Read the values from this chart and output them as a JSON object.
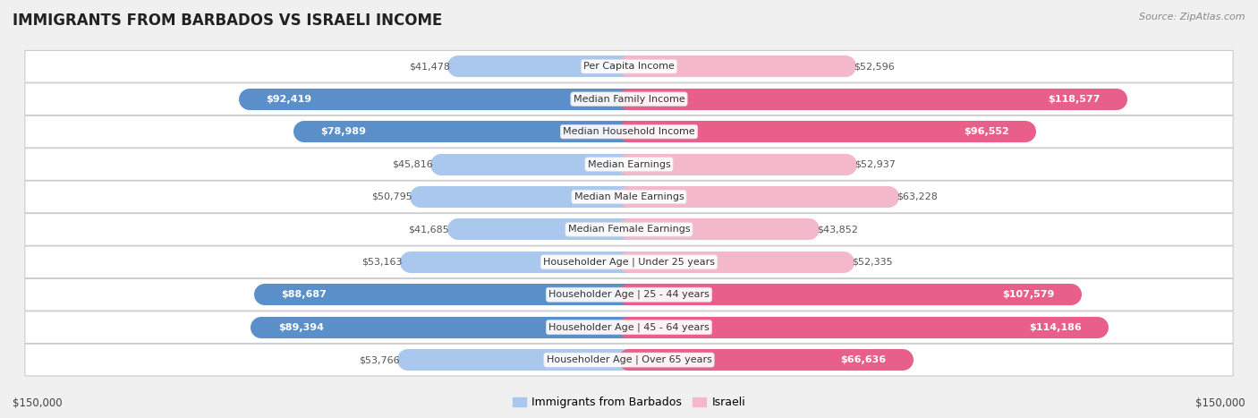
{
  "title": "IMMIGRANTS FROM BARBADOS VS ISRAELI INCOME",
  "source": "Source: ZipAtlas.com",
  "categories": [
    "Per Capita Income",
    "Median Family Income",
    "Median Household Income",
    "Median Earnings",
    "Median Male Earnings",
    "Median Female Earnings",
    "Householder Age | Under 25 years",
    "Householder Age | 25 - 44 years",
    "Householder Age | 45 - 64 years",
    "Householder Age | Over 65 years"
  ],
  "barbados_values": [
    41478,
    92419,
    78989,
    45816,
    50795,
    41685,
    53163,
    88687,
    89394,
    53766
  ],
  "israeli_values": [
    52596,
    118577,
    96552,
    52937,
    63228,
    43852,
    52335,
    107579,
    114186,
    66636
  ],
  "barbados_labels": [
    "$41,478",
    "$92,419",
    "$78,989",
    "$45,816",
    "$50,795",
    "$41,685",
    "$53,163",
    "$88,687",
    "$89,394",
    "$53,766"
  ],
  "israeli_labels": [
    "$52,596",
    "$118,577",
    "$96,552",
    "$52,937",
    "$63,228",
    "$43,852",
    "$52,335",
    "$107,579",
    "$114,186",
    "$66,636"
  ],
  "barbados_light_color": "#aac8ee",
  "barbados_dark_color": "#5b8fc9",
  "israeli_light_color": "#f4b8cb",
  "israeli_dark_color": "#e8608a",
  "max_value": 150000,
  "xlabel_left": "$150,000",
  "xlabel_right": "$150,000",
  "legend_barbados": "Immigrants from Barbados",
  "legend_israeli": "Israeli",
  "bg_color": "#f0f0f0",
  "row_bg_color": "#ffffff",
  "inside_threshold": 65000,
  "title_fontsize": 12,
  "label_fontsize": 8,
  "cat_fontsize": 8
}
